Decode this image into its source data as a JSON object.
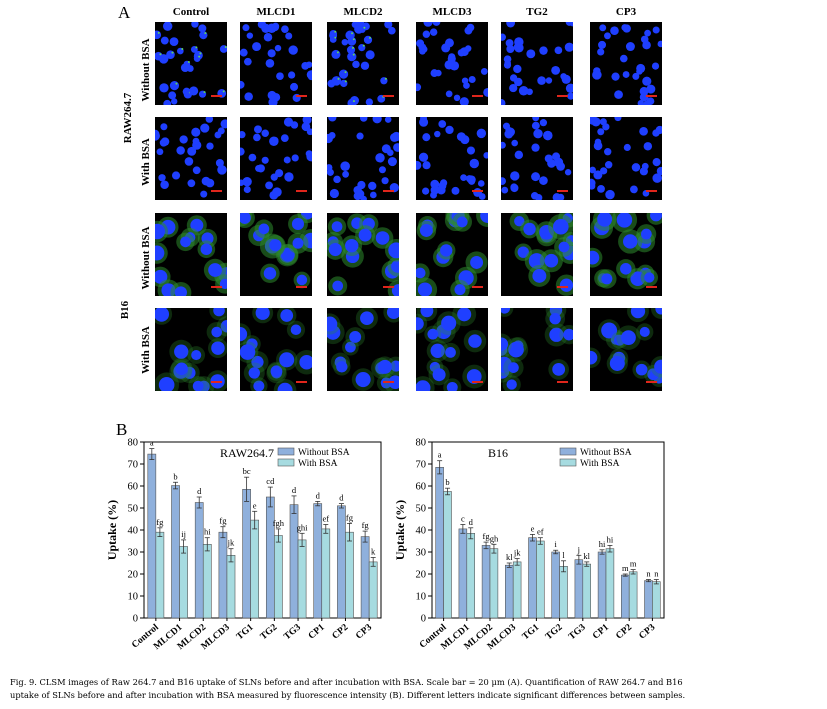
{
  "panel_a": {
    "letter": "A",
    "columns": [
      "Control",
      "MLCD1",
      "MLCD2",
      "MLCD3",
      "TG2",
      "CP3"
    ],
    "cell_lines": [
      "RAW264.7",
      "B16"
    ],
    "conditions": [
      "Without BSA",
      "With BSA",
      "Without BSA",
      "With BSA"
    ]
  },
  "panel_b": {
    "letter": "B"
  },
  "colors": {
    "without": "#8fb0dc",
    "with": "#a6dbe0",
    "nuclei": "#1f3fff",
    "membrane": "#2e8a2e",
    "scale": "#e0261c"
  },
  "chart_data": [
    {
      "type": "bar",
      "title": "RAW264.7",
      "xlabel": "",
      "ylabel": "Uptake (%)",
      "ylim": [
        0,
        80
      ],
      "yticks": [
        "0",
        "10",
        "20",
        "30",
        "40",
        "50",
        "60",
        "70",
        "80"
      ],
      "legend": [
        "Without BSA",
        "With BSA"
      ],
      "categories": [
        "Control",
        "MLCD1",
        "MLCD2",
        "MLCD3",
        "TG1",
        "TG2",
        "TG3",
        "CP1",
        "CP2",
        "CP3"
      ],
      "series": [
        {
          "name": "Without BSA",
          "values": [
            74.5,
            60.2,
            52.5,
            39.0,
            58.5,
            55.0,
            51.5,
            52.0,
            51.0,
            37.0
          ],
          "errors": [
            2.5,
            1.5,
            2.5,
            2.5,
            5.5,
            4.5,
            4.0,
            1.0,
            1.0,
            2.5
          ],
          "labels": [
            "a",
            "b",
            "d",
            "fg",
            "bc",
            "cd",
            "d",
            "d",
            "d",
            "fg"
          ]
        },
        {
          "name": "With BSA",
          "values": [
            39.0,
            32.5,
            33.5,
            28.5,
            44.5,
            37.5,
            35.5,
            40.5,
            39.0,
            25.5
          ],
          "errors": [
            2.0,
            3.0,
            3.0,
            3.0,
            4.0,
            3.0,
            3.0,
            2.0,
            4.0,
            2.0
          ],
          "labels": [
            "fg",
            "ij",
            "hi",
            "jk",
            "e",
            "fgh",
            "ghi",
            "ef",
            "fg",
            "k"
          ]
        }
      ]
    },
    {
      "type": "bar",
      "title": "B16",
      "xlabel": "",
      "ylabel": "Uptake (%)",
      "ylim": [
        0,
        80
      ],
      "yticks": [
        "0",
        "10",
        "20",
        "30",
        "40",
        "50",
        "60",
        "70",
        "80"
      ],
      "legend": [
        "Without BSA",
        "With BSA"
      ],
      "categories": [
        "Control",
        "MLCD1",
        "MLCD2",
        "MLCD3",
        "TG1",
        "TG2",
        "TG3",
        "CP1",
        "CP2",
        "CP3"
      ],
      "series": [
        {
          "name": "Without BSA",
          "values": [
            68.5,
            40.5,
            33.0,
            24.0,
            36.5,
            30.0,
            26.5,
            30.0,
            19.5,
            17.0
          ],
          "errors": [
            3.0,
            2.0,
            1.5,
            1.0,
            1.5,
            0.8,
            2.0,
            1.0,
            0.5,
            0.5
          ],
          "labels": [
            "a",
            "c",
            "fg",
            "kl",
            "e",
            "i",
            "j",
            "hi",
            "m",
            "n"
          ]
        },
        {
          "name": "With BSA",
          "values": [
            57.5,
            38.5,
            31.5,
            25.5,
            35.0,
            23.5,
            24.5,
            31.5,
            21.0,
            16.5
          ],
          "errors": [
            1.5,
            2.5,
            2.0,
            1.5,
            1.5,
            2.5,
            1.0,
            1.5,
            1.0,
            1.0
          ],
          "labels": [
            "b",
            "d",
            "gh",
            "jk",
            "ef",
            "l",
            "kl",
            "hi",
            "m",
            "n"
          ]
        }
      ]
    }
  ],
  "caption": {
    "line1": "Fig. 9. CLSM images of Raw 264.7 and B16 uptake of SLNs before and after incubation with BSA. Scale bar = 20 μm (A). Quantification of RAW 264.7 and B16",
    "line2": "uptake of SLNs before and after incubation with BSA measured by fluorescence intensity (B). Different letters indicate significant differences between samples."
  }
}
